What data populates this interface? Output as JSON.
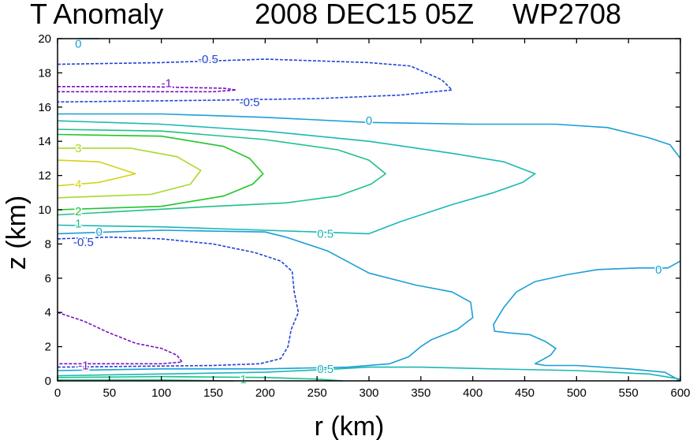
{
  "chart_data": {
    "type": "contour",
    "title_left": "T Anomaly",
    "title_date": "2008 DEC15 05Z",
    "title_storm": "WP2708",
    "xlabel": "r (km)",
    "ylabel": "z (km)",
    "xlim": [
      0,
      600
    ],
    "ylim": [
      0,
      20
    ],
    "x_ticks": [
      0,
      50,
      100,
      150,
      200,
      250,
      300,
      350,
      400,
      450,
      500,
      550,
      600
    ],
    "y_ticks": [
      0,
      2,
      4,
      6,
      8,
      10,
      12,
      14,
      16,
      18,
      20
    ],
    "colors": {
      "neg1": "#7a0dc4",
      "neg05": "#1f43d6",
      "zero": "#1a9fd6",
      "pos05": "#1ab8b4",
      "pos1": "#1ec08a",
      "pos2": "#20c52a",
      "pos3": "#a8d82a",
      "pos4": "#d6d21a"
    },
    "contours": [
      {
        "level": "-0.5",
        "color_key": "neg05",
        "dashed": true,
        "points": [
          [
            0,
            18.5
          ],
          [
            100,
            18.6
          ],
          [
            200,
            18.8
          ],
          [
            300,
            18.6
          ],
          [
            340,
            18.4
          ],
          [
            370,
            17.6
          ],
          [
            380,
            17.0
          ],
          [
            330,
            16.7
          ],
          [
            250,
            16.5
          ],
          [
            150,
            16.4
          ],
          [
            0,
            16.3
          ]
        ]
      },
      {
        "level": "-1",
        "color_key": "neg1",
        "dashed": true,
        "points": [
          [
            0,
            17.2
          ],
          [
            80,
            17.2
          ],
          [
            160,
            17.1
          ],
          [
            172,
            17.0
          ],
          [
            150,
            16.9
          ],
          [
            80,
            16.9
          ],
          [
            0,
            16.9
          ]
        ]
      },
      {
        "level": "0",
        "color_key": "zero",
        "dashed": false,
        "points": [
          [
            0,
            15.6
          ],
          [
            100,
            15.6
          ],
          [
            200,
            15.4
          ],
          [
            300,
            15.1
          ],
          [
            400,
            15.0
          ],
          [
            480,
            15.0
          ],
          [
            530,
            14.8
          ],
          [
            570,
            14.2
          ],
          [
            590,
            13.8
          ],
          [
            600,
            13.0
          ]
        ]
      },
      {
        "level": "0",
        "color_key": "zero",
        "dashed": false,
        "points": [
          [
            20,
            20.0
          ],
          [
            40,
            20.0
          ]
        ]
      },
      {
        "level": "0.5",
        "color_key": "pos05",
        "dashed": false,
        "points": [
          [
            0,
            15.2
          ],
          [
            100,
            15.0
          ],
          [
            200,
            14.6
          ],
          [
            300,
            14.0
          ],
          [
            380,
            13.3
          ],
          [
            430,
            12.8
          ],
          [
            460,
            12.1
          ],
          [
            448,
            11.6
          ],
          [
            420,
            11.0
          ],
          [
            380,
            10.3
          ],
          [
            330,
            9.3
          ],
          [
            300,
            8.6
          ],
          [
            250,
            8.7
          ],
          [
            200,
            8.8
          ],
          [
            100,
            9.0
          ],
          [
            0,
            9.1
          ]
        ]
      },
      {
        "level": "1",
        "color_key": "pos1",
        "dashed": false,
        "points": [
          [
            0,
            14.7
          ],
          [
            100,
            14.6
          ],
          [
            200,
            14.1
          ],
          [
            270,
            13.5
          ],
          [
            300,
            12.9
          ],
          [
            316,
            12.1
          ],
          [
            302,
            11.5
          ],
          [
            270,
            10.8
          ],
          [
            220,
            10.4
          ],
          [
            150,
            10.2
          ],
          [
            0,
            9.7
          ]
        ]
      },
      {
        "level": "2",
        "color_key": "pos2",
        "dashed": false,
        "points": [
          [
            0,
            14.4
          ],
          [
            100,
            14.3
          ],
          [
            160,
            13.7
          ],
          [
            185,
            13.0
          ],
          [
            198,
            12.1
          ],
          [
            188,
            11.5
          ],
          [
            160,
            10.8
          ],
          [
            100,
            10.2
          ],
          [
            0,
            10.0
          ]
        ]
      },
      {
        "level": "3",
        "color_key": "pos3",
        "dashed": false,
        "points": [
          [
            0,
            13.6
          ],
          [
            70,
            13.6
          ],
          [
            115,
            13.1
          ],
          [
            138,
            12.3
          ],
          [
            128,
            11.5
          ],
          [
            90,
            10.9
          ],
          [
            0,
            10.7
          ]
        ]
      },
      {
        "level": "4",
        "color_key": "pos4",
        "dashed": false,
        "points": [
          [
            0,
            12.9
          ],
          [
            40,
            12.8
          ],
          [
            75,
            12.1
          ],
          [
            40,
            11.6
          ],
          [
            0,
            11.4
          ]
        ]
      },
      {
        "level": "0",
        "color_key": "zero",
        "dashed": false,
        "points": [
          [
            0,
            8.6
          ],
          [
            100,
            8.8
          ],
          [
            200,
            8.7
          ],
          [
            220,
            8.4
          ],
          [
            260,
            7.6
          ],
          [
            300,
            6.3
          ],
          [
            345,
            5.6
          ],
          [
            380,
            5.2
          ],
          [
            398,
            4.6
          ],
          [
            400,
            3.7
          ],
          [
            385,
            3.0
          ],
          [
            360,
            2.4
          ],
          [
            350,
            2.0
          ],
          [
            338,
            1.4
          ],
          [
            320,
            1.0
          ],
          [
            280,
            0.8
          ],
          [
            200,
            0.7
          ],
          [
            100,
            0.7
          ],
          [
            0,
            0.6
          ]
        ]
      },
      {
        "level": "0",
        "color_key": "zero",
        "dashed": false,
        "points": [
          [
            600,
            7.0
          ],
          [
            588,
            6.6
          ],
          [
            560,
            6.6
          ],
          [
            520,
            6.5
          ],
          [
            490,
            6.2
          ],
          [
            460,
            5.8
          ],
          [
            442,
            5.2
          ],
          [
            430,
            4.3
          ],
          [
            420,
            3.3
          ],
          [
            421,
            2.9
          ],
          [
            435,
            2.8
          ],
          [
            455,
            2.7
          ],
          [
            470,
            2.3
          ],
          [
            480,
            1.9
          ],
          [
            475,
            1.5
          ],
          [
            460,
            1.0
          ],
          [
            470,
            0.9
          ],
          [
            500,
            0.9
          ],
          [
            550,
            0.7
          ],
          [
            585,
            0.5
          ],
          [
            600,
            0.0
          ]
        ]
      },
      {
        "level": "-0.5",
        "color_key": "neg05",
        "dashed": true,
        "points": [
          [
            0,
            8.3
          ],
          [
            50,
            8.4
          ],
          [
            100,
            8.3
          ],
          [
            150,
            8.0
          ],
          [
            190,
            7.5
          ],
          [
            215,
            7.0
          ],
          [
            226,
            6.4
          ],
          [
            228,
            5.2
          ],
          [
            232,
            4.0
          ],
          [
            225,
            3.0
          ],
          [
            222,
            2.0
          ],
          [
            215,
            1.3
          ],
          [
            195,
            1.0
          ],
          [
            150,
            0.9
          ],
          [
            0,
            0.8
          ]
        ]
      },
      {
        "level": "-1",
        "color_key": "neg1",
        "dashed": true,
        "points": [
          [
            0,
            4.0
          ],
          [
            25,
            3.5
          ],
          [
            50,
            2.8
          ],
          [
            75,
            2.2
          ],
          [
            100,
            1.9
          ],
          [
            115,
            1.5
          ],
          [
            120,
            1.1
          ],
          [
            100,
            1.0
          ],
          [
            0,
            1.0
          ]
        ]
      },
      {
        "level": "0.5",
        "color_key": "pos05",
        "dashed": false,
        "points": [
          [
            0,
            0.3
          ],
          [
            100,
            0.4
          ],
          [
            200,
            0.5
          ],
          [
            270,
            0.7
          ],
          [
            300,
            0.8
          ],
          [
            350,
            0.8
          ],
          [
            420,
            0.7
          ],
          [
            500,
            0.6
          ],
          [
            570,
            0.4
          ],
          [
            600,
            0.1
          ]
        ]
      },
      {
        "level": "1",
        "color_key": "pos1",
        "dashed": false,
        "points": [
          [
            0,
            0.2
          ],
          [
            100,
            0.25
          ],
          [
            200,
            0.2
          ],
          [
            250,
            0.1
          ],
          [
            275,
            0.0
          ]
        ]
      },
      {
        "level": "1",
        "color_key": "pos1",
        "dashed": false,
        "points": [
          [
            0,
            0.05
          ],
          [
            100,
            0.05
          ],
          [
            170,
            0.0
          ]
        ]
      }
    ],
    "contour_labels": [
      {
        "text": "0",
        "x": 20,
        "y": 19.7,
        "color_key": "zero"
      },
      {
        "text": "-0.5",
        "x": 145,
        "y": 18.8,
        "color_key": "neg05"
      },
      {
        "text": "-1",
        "x": 105,
        "y": 17.4,
        "color_key": "neg1"
      },
      {
        "text": "-0.5",
        "x": 185,
        "y": 16.3,
        "color_key": "neg05"
      },
      {
        "text": "0",
        "x": 300,
        "y": 15.2,
        "color_key": "zero"
      },
      {
        "text": "3",
        "x": 20,
        "y": 13.6,
        "color_key": "pos3"
      },
      {
        "text": "4",
        "x": 20,
        "y": 11.5,
        "color_key": "pos4"
      },
      {
        "text": "2",
        "x": 20,
        "y": 9.9,
        "color_key": "pos2"
      },
      {
        "text": "1",
        "x": 20,
        "y": 9.2,
        "color_key": "pos1"
      },
      {
        "text": "0",
        "x": 40,
        "y": 8.7,
        "color_key": "zero"
      },
      {
        "text": "0.5",
        "x": 258,
        "y": 8.6,
        "color_key": "pos05"
      },
      {
        "text": "-0.5",
        "x": 25,
        "y": 8.1,
        "color_key": "neg05"
      },
      {
        "text": "0",
        "x": 579,
        "y": 6.5,
        "color_key": "zero"
      },
      {
        "text": "-1",
        "x": 25,
        "y": 0.9,
        "color_key": "neg1"
      },
      {
        "text": "0.5",
        "x": 258,
        "y": 0.7,
        "color_key": "pos05"
      },
      {
        "text": "1",
        "x": 179,
        "y": 0.1,
        "color_key": "pos1"
      }
    ]
  }
}
